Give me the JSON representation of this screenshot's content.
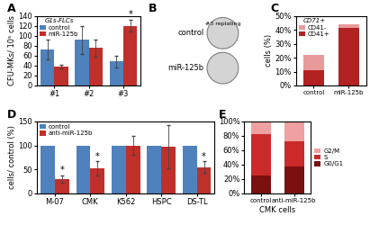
{
  "chart_data": [
    {
      "type": "bar",
      "title": "A",
      "y_label": "CFU-MKs/ 10⁵ cells",
      "categories": [
        "#1",
        "#2",
        "#3"
      ],
      "series": [
        {
          "name": "control",
          "color": "#4f81bd",
          "values": [
            73,
            92,
            48
          ],
          "errors": [
            20,
            28,
            12
          ]
        },
        {
          "name": "miR-125b",
          "color": "#c0302a",
          "values": [
            38,
            75,
            120
          ],
          "errors": [
            3,
            18,
            12
          ]
        }
      ],
      "ylim": [
        0,
        140
      ],
      "yticks": [
        0,
        20,
        40,
        60,
        80,
        100,
        120,
        140
      ],
      "legend": "upper left",
      "legend_title": "G1s-FLCs",
      "annotations": [
        {
          "text": "*",
          "category": "#3",
          "series": "miR-125b"
        }
      ]
    },
    {
      "type": "image",
      "title": "B",
      "categories": [
        "control",
        "miR-125b"
      ],
      "annotations": [
        {
          "text": "#3 replating",
          "category": "control"
        }
      ]
    },
    {
      "type": "bar",
      "stacked": true,
      "title": "C",
      "y_label": "cells (%)",
      "categories": [
        "control",
        "miR-125b"
      ],
      "series": [
        {
          "name": "CD41+",
          "color": "#b22222",
          "values": [
            11,
            41
          ]
        },
        {
          "name": "CD41-",
          "color": "#e89a9a",
          "values": [
            11,
            3
          ]
        }
      ],
      "ylim": [
        0,
        50
      ],
      "yticks": [
        {
          "value": 0,
          "label": "0%"
        },
        {
          "value": 10,
          "label": "10%"
        },
        {
          "value": 20,
          "label": "20%"
        },
        {
          "value": 30,
          "label": "30%"
        },
        {
          "value": 40,
          "label": "40%"
        },
        {
          "value": 50,
          "label": "50%"
        }
      ],
      "legend": "upper left",
      "legend_title": "CD71+"
    },
    {
      "type": "bar",
      "title": "D",
      "y_label": "cells/ control (%)",
      "categories": [
        "M-07",
        "CMK",
        "K562",
        "HSPC",
        "DS-TL"
      ],
      "series": [
        {
          "name": "control",
          "color": "#4f81bd",
          "values": [
            100,
            100,
            100,
            100,
            100
          ]
        },
        {
          "name": "anti-miR-125b",
          "color": "#c0302a",
          "values": [
            30,
            52,
            100,
            97,
            55
          ],
          "errors": [
            8,
            15,
            20,
            45,
            12
          ]
        }
      ],
      "ylim": [
        0,
        150
      ],
      "yticks": [
        0,
        50,
        100,
        150
      ],
      "legend": "upper left",
      "annotations": [
        {
          "text": "*",
          "category": "M-07",
          "series": "anti-miR-125b"
        },
        {
          "text": "*",
          "category": "CMK",
          "series": "anti-miR-125b"
        },
        {
          "text": "*",
          "category": "DS-TL",
          "series": "anti-miR-125b"
        }
      ]
    },
    {
      "type": "bar",
      "stacked": true,
      "title": "E",
      "x_label": "CMK cells",
      "categories": [
        "control",
        "anti-miR-125b"
      ],
      "series": [
        {
          "name": "G0/G1",
          "color": "#7a1010",
          "values": [
            25,
            37
          ]
        },
        {
          "name": "S",
          "color": "#cc2a2a",
          "values": [
            58,
            36
          ]
        },
        {
          "name": "G2/M",
          "color": "#f0a0a0",
          "values": [
            17,
            27
          ]
        }
      ],
      "ylim": [
        0,
        100
      ],
      "yticks": [
        {
          "value": 0,
          "label": "0%"
        },
        {
          "value": 20,
          "label": "20%"
        },
        {
          "value": 40,
          "label": "40%"
        },
        {
          "value": 60,
          "label": "60%"
        },
        {
          "value": 80,
          "label": "80%"
        },
        {
          "value": 100,
          "label": "100%"
        }
      ],
      "legend": "right"
    }
  ]
}
